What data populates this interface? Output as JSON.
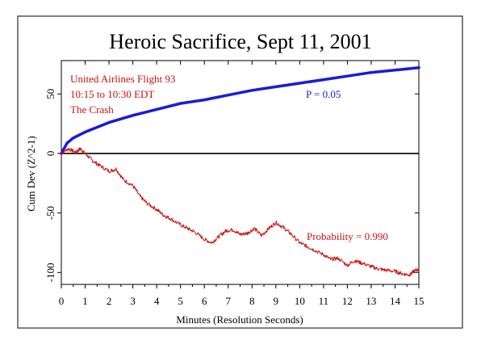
{
  "chart_data": {
    "type": "line",
    "title": "Heroic Sacrifice, Sept 11, 2001",
    "xlabel": "Minutes (Resolution Seconds)",
    "ylabel": "Cum Dev (Z^2-1)",
    "xlim": [
      0,
      15
    ],
    "ylim": [
      -110,
      78
    ],
    "x_ticks": [
      0,
      1,
      2,
      3,
      4,
      5,
      6,
      7,
      8,
      9,
      10,
      11,
      12,
      13,
      14,
      15
    ],
    "y_ticks": [
      50,
      0,
      -50,
      -100
    ],
    "zero_line": true,
    "annotations": {
      "event_lines": [
        "United Airlines Flight 93",
        "10:15 to 10:30 EDT",
        "The Crash"
      ],
      "p_label": "P = 0.05",
      "probability_label": "Probability = 0.990"
    },
    "series": [
      {
        "role": "p-envelope",
        "color": "#1a1adc",
        "x": [
          0,
          0.25,
          0.5,
          1,
          1.5,
          2,
          3,
          4,
          5,
          6,
          7,
          8,
          9,
          10,
          11,
          12,
          13,
          14,
          15
        ],
        "y": [
          0,
          9,
          13,
          18,
          22,
          26,
          32,
          37,
          42,
          45,
          49,
          53,
          56,
          59,
          62,
          65,
          68,
          70,
          72
        ]
      },
      {
        "role": "cumulative-deviation",
        "color": "#cc1010",
        "x": [
          0,
          0.3,
          0.6,
          0.8,
          1.0,
          1.3,
          1.6,
          2.0,
          2.3,
          2.6,
          3.0,
          3.3,
          3.6,
          4.0,
          4.3,
          4.6,
          5.0,
          5.3,
          5.6,
          6.0,
          6.3,
          6.6,
          6.9,
          7.2,
          7.5,
          7.8,
          8.1,
          8.4,
          8.7,
          9.0,
          9.3,
          9.6,
          10.0,
          10.3,
          10.6,
          11.0,
          11.3,
          11.6,
          12.0,
          12.3,
          12.6,
          13.0,
          13.3,
          13.6,
          14.0,
          14.3,
          14.6,
          14.8,
          15.0
        ],
        "y": [
          0,
          4,
          1,
          4,
          0,
          -6,
          -10,
          -15,
          -13,
          -22,
          -27,
          -36,
          -42,
          -47,
          -52,
          -55,
          -60,
          -63,
          -66,
          -72,
          -75,
          -70,
          -65,
          -64,
          -68,
          -67,
          -63,
          -69,
          -63,
          -58,
          -62,
          -67,
          -75,
          -78,
          -81,
          -85,
          -89,
          -88,
          -94,
          -90,
          -92,
          -95,
          -97,
          -98,
          -99,
          -101,
          -102,
          -99,
          -97
        ]
      }
    ]
  }
}
